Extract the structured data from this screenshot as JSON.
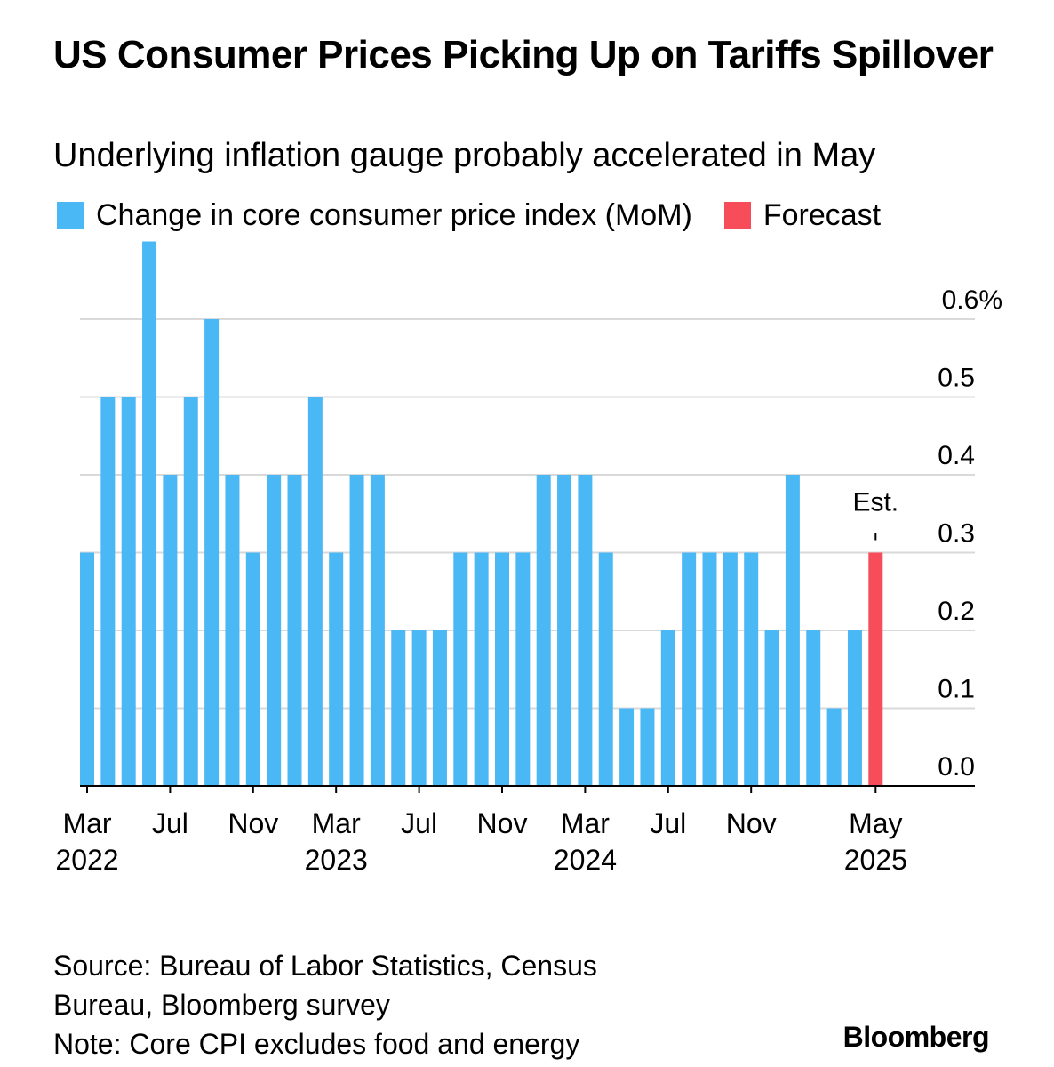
{
  "chart_data": {
    "type": "bar",
    "title": "US Consumer Prices Picking Up on Tariffs Spillover",
    "subtitle": "Underlying inflation gauge probably accelerated in May",
    "series": [
      {
        "name": "Change in core consumer price index (MoM)",
        "color": "#4ab8f5"
      },
      {
        "name": "Forecast",
        "color": "#f74d5a"
      }
    ],
    "categories": [
      "Mar 2022",
      "Apr 2022",
      "May 2022",
      "Jun 2022",
      "Jul 2022",
      "Aug 2022",
      "Sep 2022",
      "Oct 2022",
      "Nov 2022",
      "Dec 2022",
      "Jan 2023",
      "Feb 2023",
      "Mar 2023",
      "Apr 2023",
      "May 2023",
      "Jun 2023",
      "Jul 2023",
      "Aug 2023",
      "Sep 2023",
      "Oct 2023",
      "Nov 2023",
      "Dec 2023",
      "Jan 2024",
      "Feb 2024",
      "Mar 2024",
      "Apr 2024",
      "May 2024",
      "Jun 2024",
      "Jul 2024",
      "Aug 2024",
      "Sep 2024",
      "Oct 2024",
      "Nov 2024",
      "Dec 2024",
      "Jan 2025",
      "Feb 2025",
      "Mar 2025",
      "Apr 2025",
      "May 2025"
    ],
    "values": [
      0.3,
      0.5,
      0.5,
      0.7,
      0.4,
      0.5,
      0.6,
      0.4,
      0.3,
      0.4,
      0.4,
      0.5,
      0.3,
      0.4,
      0.4,
      0.2,
      0.2,
      0.2,
      0.3,
      0.3,
      0.3,
      0.3,
      0.4,
      0.4,
      0.4,
      0.3,
      0.1,
      0.1,
      0.2,
      0.3,
      0.3,
      0.3,
      0.3,
      0.2,
      0.4,
      0.2,
      0.1,
      0.2,
      0.3
    ],
    "forecast_index": 38,
    "forecast_label": "Est.",
    "y_axis": {
      "ylim": [
        0,
        0.7
      ],
      "ticks": [
        0.0,
        0.1,
        0.2,
        0.3,
        0.4,
        0.5,
        0.6
      ],
      "tick_labels": [
        "0.0",
        "0.1",
        "0.2",
        "0.3",
        "0.4",
        "0.5",
        "0.6%"
      ],
      "position": "right"
    },
    "x_axis": {
      "ticks": [
        {
          "index": 0,
          "month": "Mar",
          "year": "2022"
        },
        {
          "index": 4,
          "month": "Jul",
          "year": ""
        },
        {
          "index": 8,
          "month": "Nov",
          "year": ""
        },
        {
          "index": 12,
          "month": "Mar",
          "year": "2023"
        },
        {
          "index": 16,
          "month": "Jul",
          "year": ""
        },
        {
          "index": 20,
          "month": "Nov",
          "year": ""
        },
        {
          "index": 24,
          "month": "Mar",
          "year": "2024"
        },
        {
          "index": 28,
          "month": "Jul",
          "year": ""
        },
        {
          "index": 32,
          "month": "Nov",
          "year": ""
        },
        {
          "index": 38,
          "month": "May",
          "year": "2025"
        }
      ]
    },
    "grid": true,
    "legend_placement": "top-left"
  },
  "footer": {
    "source_line1": "Source: Bureau of Labor Statistics, Census",
    "source_line2": "Bureau, Bloomberg survey",
    "note": "Note: Core CPI excludes food and energy",
    "brand": "Bloomberg"
  }
}
